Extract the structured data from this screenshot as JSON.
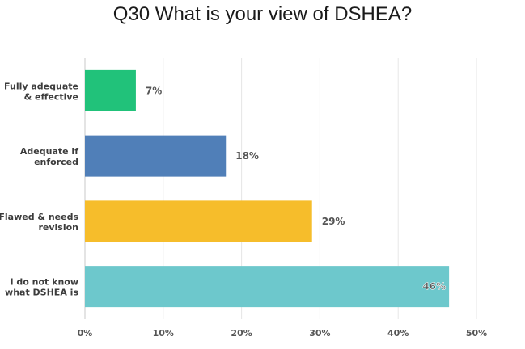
{
  "chart_data": {
    "type": "bar",
    "orientation": "horizontal",
    "title": "Q30 What is your view of DSHEA?",
    "categories": [
      "Fully adequate & effective",
      "Adequate if enforced",
      "Flawed & needs revision",
      "I do not know what DSHEA is"
    ],
    "category_label_lines": [
      [
        "Fully adequate",
        "& effective"
      ],
      [
        "Adequate if",
        "enforced"
      ],
      [
        "Flawed & needs",
        "revision"
      ],
      [
        "I do not know",
        "what DSHEA is"
      ]
    ],
    "values": [
      6.5,
      18.0,
      29.0,
      46.5
    ],
    "value_labels": [
      "7%",
      "18%",
      "29%",
      "46%"
    ],
    "bar_colors": [
      "#21c27a",
      "#507fb8",
      "#f6bd2b",
      "#6dc8cc"
    ],
    "xlim": [
      0,
      50
    ],
    "x_ticks": [
      0,
      10,
      20,
      30,
      40,
      50
    ],
    "x_tick_labels": [
      "0%",
      "10%",
      "20%",
      "30%",
      "40%",
      "50%"
    ],
    "grid": true,
    "xlabel": "",
    "ylabel": ""
  }
}
